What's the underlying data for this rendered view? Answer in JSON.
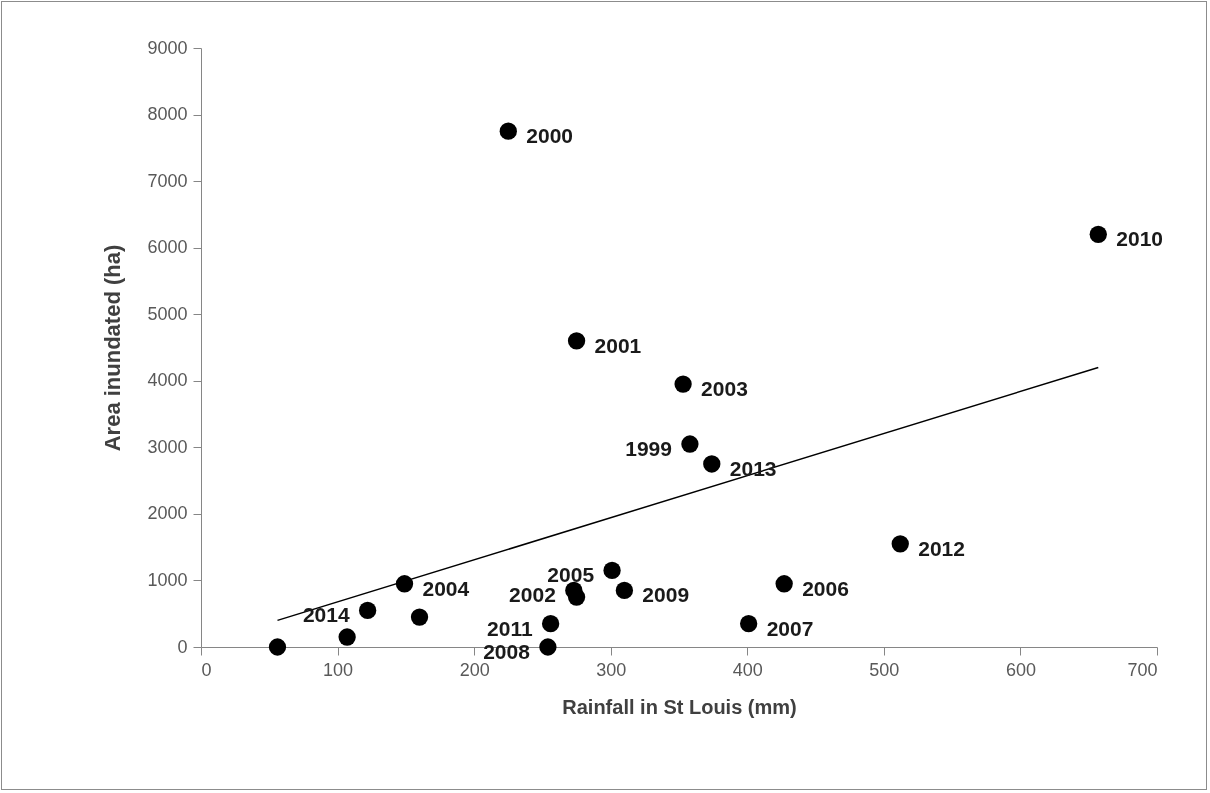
{
  "chart_data": {
    "type": "scatter",
    "xlabel": "Rainfall in St Louis (mm)",
    "ylabel": "Area inundated (ha)",
    "xlim": [
      0,
      700
    ],
    "ylim": [
      0,
      9000
    ],
    "xticks": [
      0,
      100,
      200,
      300,
      400,
      500,
      600,
      700
    ],
    "yticks": [
      0,
      1000,
      2000,
      3000,
      4000,
      5000,
      6000,
      7000,
      8000,
      9000
    ],
    "grid": false,
    "series": [
      {
        "color": "#000000",
        "marker": "circle",
        "x": [
          358,
          225,
          275,
          273,
          275,
          353,
          374,
          657,
          512,
          427,
          401,
          301,
          310,
          149,
          122,
          160,
          107,
          56,
          256,
          254
        ],
        "values": [
          3050,
          7750,
          4600,
          850,
          750,
          3950,
          2750,
          6200,
          1550,
          950,
          350,
          1150,
          850,
          950,
          550,
          450,
          150,
          0,
          350,
          0
        ]
      },
      {
        "type": "line",
        "color": "#000000",
        "marker": "none",
        "x": [
          56,
          657
        ],
        "values": [
          400,
          4200
        ]
      }
    ],
    "annotations": [
      {
        "text": "1999",
        "x": 358,
        "y": 3050
      },
      {
        "text": "2000",
        "x": 225,
        "y": 7750
      },
      {
        "text": "2001",
        "x": 275,
        "y": 4600
      },
      {
        "text": "2002",
        "x": 273,
        "y": 850
      },
      {
        "text": "2003",
        "x": 353,
        "y": 3950
      },
      {
        "text": "2013",
        "x": 374,
        "y": 2750
      },
      {
        "text": "2010",
        "x": 657,
        "y": 6200
      },
      {
        "text": "2012",
        "x": 512,
        "y": 1550
      },
      {
        "text": "2006",
        "x": 427,
        "y": 950
      },
      {
        "text": "2007",
        "x": 401,
        "y": 350
      },
      {
        "text": "2005",
        "x": 301,
        "y": 1150
      },
      {
        "text": "2009",
        "x": 310,
        "y": 850
      },
      {
        "text": "2004",
        "x": 149,
        "y": 950
      },
      {
        "text": "2014",
        "x": 122,
        "y": 550
      },
      {
        "text": "2011",
        "x": 256,
        "y": 350
      },
      {
        "text": "2008",
        "x": 254,
        "y": 0
      }
    ]
  }
}
